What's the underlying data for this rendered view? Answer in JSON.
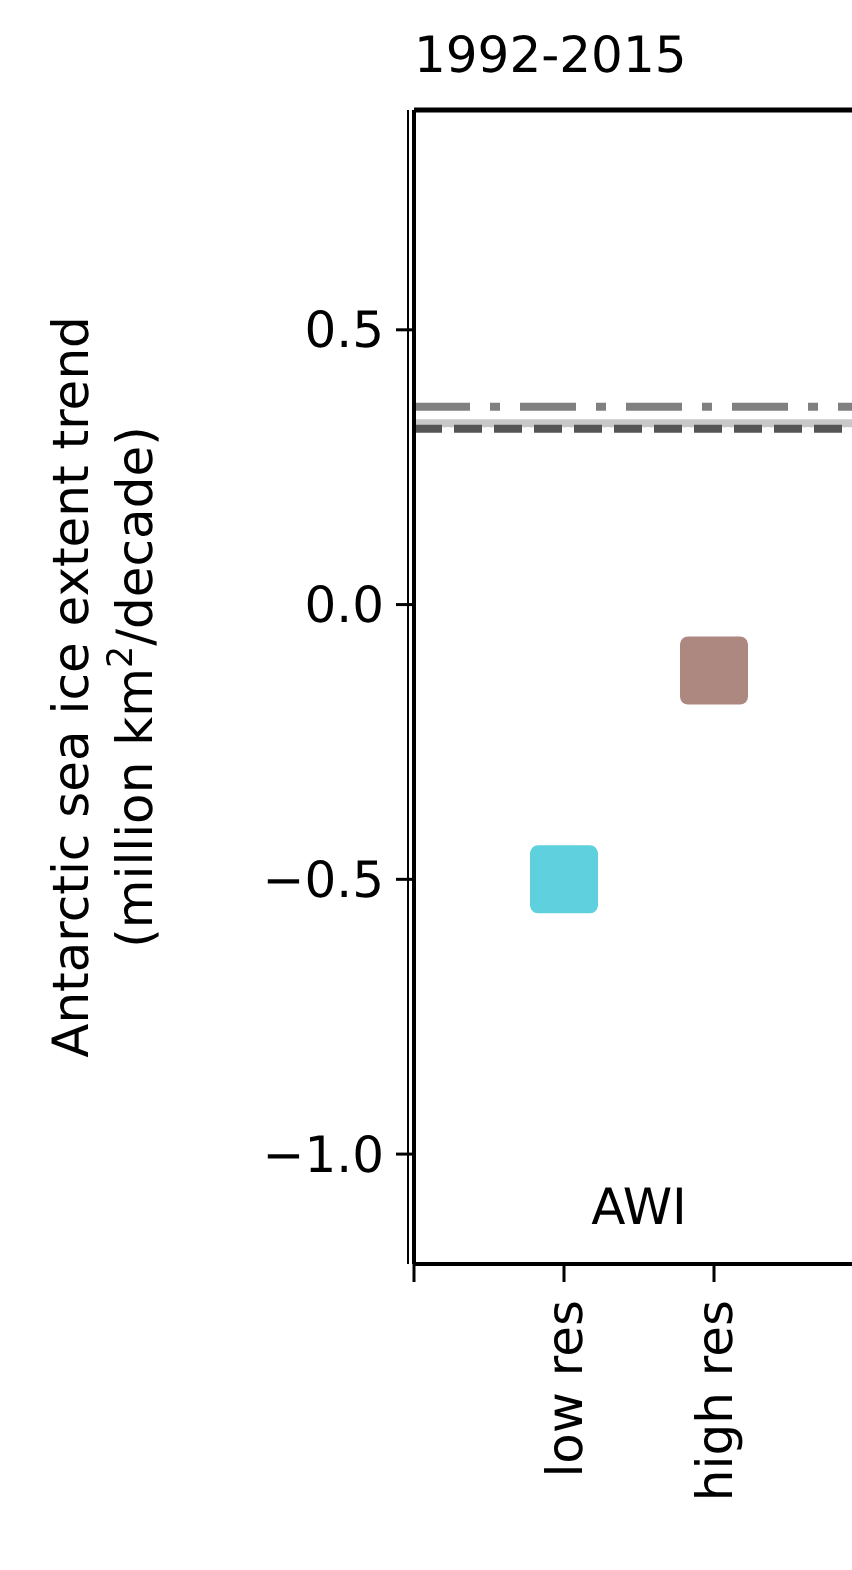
{
  "chart_data": {
    "type": "scatter",
    "title": "1992-2015",
    "ylabel": "Antarctic sea ice extent trend\n(million km$^{2}$/decade)",
    "categories": [
      null,
      "low res",
      "high res"
    ],
    "series": [
      {
        "colors": [
          null,
          "#5fd1de",
          "#ad8880"
        ],
        "values": [
          null,
          -0.5,
          -0.12
        ]
      }
    ],
    "marker": "square",
    "ylim": [
      -1.2,
      0.9
    ],
    "yticks": [
      {
        "value": 0.5,
        "label": "0.5"
      },
      {
        "value": 0.0,
        "label": "0.0"
      },
      {
        "value": -0.5,
        "label": "−0.5"
      },
      {
        "value": -1.0,
        "label": "−1.0"
      }
    ],
    "ref_lines": [
      {
        "axis": "y",
        "value": 0.36,
        "color": "#808080",
        "line_style": "dashdot"
      },
      {
        "axis": "y",
        "value": 0.33,
        "color": "#c8c8c8",
        "line_style": "solid"
      },
      {
        "axis": "y",
        "value": 0.32,
        "color": "#555555",
        "line_style": "dashed"
      }
    ],
    "annotations": [
      "AWI"
    ],
    "grid": false
  }
}
